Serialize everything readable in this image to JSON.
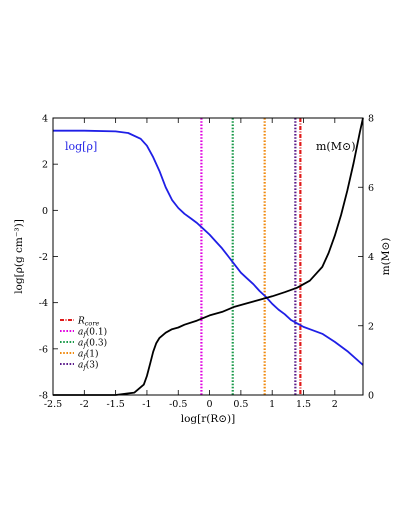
{
  "chart_data": {
    "type": "line",
    "xlabel": "log[r(R⊙)]",
    "ylabel_left": "log[ρ(g cm⁻³)]",
    "ylabel_right": "m(M⊙)",
    "xlim": [
      -2.5,
      2.45
    ],
    "ylim_left": [
      -8,
      4
    ],
    "ylim_right": [
      0,
      8
    ],
    "xticks": [
      -2.5,
      -2,
      -1.5,
      -1,
      -0.5,
      0,
      0.5,
      1,
      1.5,
      2
    ],
    "xtick_labels": [
      "-2.5",
      "-2",
      "-1.5",
      "-1",
      "-0.5",
      "0",
      "0.5",
      "1",
      "1.5",
      "2"
    ],
    "yticks_left": [
      4,
      2,
      0,
      -2,
      -4,
      -6,
      -8
    ],
    "ytick_labels_left": [
      "4",
      "2",
      "0",
      "-2",
      "-4",
      "-6",
      "-8"
    ],
    "yticks_right": [
      8,
      6,
      4,
      2,
      0
    ],
    "ytick_labels_right": [
      "8",
      "6",
      "4",
      "2",
      "0"
    ],
    "grid": false,
    "legend_position": "bottom-left",
    "annotations": [
      {
        "text": "log[ρ]",
        "color": "#1f1fe6"
      },
      {
        "text": "m(M⊙)",
        "color": "#000000"
      }
    ],
    "series": [
      {
        "name": "log[ρ]",
        "axis": "left",
        "color": "#1f1fe6",
        "x": [
          -2.5,
          -2.0,
          -1.5,
          -1.3,
          -1.1,
          -1.0,
          -0.9,
          -0.8,
          -0.7,
          -0.6,
          -0.5,
          -0.4,
          -0.3,
          -0.2,
          -0.1,
          0.0,
          0.1,
          0.2,
          0.3,
          0.4,
          0.5,
          0.6,
          0.7,
          0.8,
          0.9,
          1.0,
          1.1,
          1.2,
          1.3,
          1.4,
          1.5,
          1.6,
          1.8,
          2.0,
          2.2,
          2.45
        ],
        "y": [
          3.45,
          3.45,
          3.42,
          3.35,
          3.1,
          2.8,
          2.3,
          1.7,
          1.0,
          0.45,
          0.1,
          -0.15,
          -0.35,
          -0.55,
          -0.8,
          -1.05,
          -1.35,
          -1.65,
          -2.0,
          -2.35,
          -2.7,
          -2.95,
          -3.2,
          -3.5,
          -3.75,
          -4.05,
          -4.3,
          -4.5,
          -4.75,
          -4.9,
          -5.05,
          -5.15,
          -5.35,
          -5.7,
          -6.1,
          -6.7
        ]
      },
      {
        "name": "m(M⊙)",
        "axis": "right",
        "color": "#000000",
        "x": [
          -2.5,
          -1.5,
          -1.2,
          -1.05,
          -1.0,
          -0.95,
          -0.9,
          -0.85,
          -0.8,
          -0.7,
          -0.6,
          -0.5,
          -0.4,
          -0.2,
          0.0,
          0.2,
          0.4,
          0.6,
          0.8,
          1.0,
          1.2,
          1.4,
          1.6,
          1.8,
          1.9,
          2.0,
          2.1,
          2.2,
          2.3,
          2.4,
          2.45
        ],
        "y": [
          0.0,
          0.0,
          0.07,
          0.3,
          0.55,
          0.9,
          1.25,
          1.5,
          1.65,
          1.8,
          1.9,
          1.95,
          2.03,
          2.15,
          2.3,
          2.4,
          2.55,
          2.65,
          2.75,
          2.85,
          2.97,
          3.1,
          3.3,
          3.7,
          4.1,
          4.6,
          5.2,
          5.9,
          6.7,
          7.6,
          8.0
        ]
      }
    ],
    "vlines": [
      {
        "name": "R_core",
        "x": 1.45,
        "color": "#e01a1a",
        "dash": "dashdot"
      },
      {
        "name": "af(0.1)",
        "x": -0.13,
        "color": "#e000e0",
        "dash": "dotted"
      },
      {
        "name": "af(0.3)",
        "x": 0.37,
        "color": "#1a9a4a",
        "dash": "dotted"
      },
      {
        "name": "af(1)",
        "x": 0.88,
        "color": "#f08a10",
        "dash": "dotted"
      },
      {
        "name": "af(3)",
        "x": 1.37,
        "color": "#5a1a8a",
        "dash": "dotted"
      }
    ],
    "legend": [
      {
        "base": "R",
        "sub": "core",
        "paren": "",
        "color": "#e01a1a",
        "dash": "dashdot"
      },
      {
        "base": "a",
        "sub": "f",
        "paren": "(0.1)",
        "color": "#e000e0",
        "dash": "dotted"
      },
      {
        "base": "a",
        "sub": "f",
        "paren": "(0.3)",
        "color": "#1a9a4a",
        "dash": "dotted"
      },
      {
        "base": "a",
        "sub": "f",
        "paren": "(1)",
        "color": "#f08a10",
        "dash": "dotted"
      },
      {
        "base": "a",
        "sub": "f",
        "paren": "(3)",
        "color": "#5a1a8a",
        "dash": "dotted"
      }
    ]
  }
}
